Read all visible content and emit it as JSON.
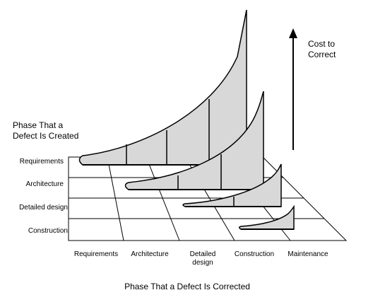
{
  "diagram": {
    "title_y_axis": [
      "Phase That a",
      "Defect Is Created"
    ],
    "title_x_axis": "Phase That a Defect Is Corrected",
    "cost_label": [
      "Cost to",
      "Correct"
    ],
    "created_phases": [
      "Requirements",
      "Architecture",
      "Detailed design",
      "Construction"
    ],
    "corrected_phases": [
      {
        "lines": [
          "Requirements"
        ]
      },
      {
        "lines": [
          "Architecture"
        ]
      },
      {
        "lines": [
          "Detailed",
          "design"
        ]
      },
      {
        "lines": [
          "Construction"
        ]
      },
      {
        "lines": [
          "Maintenance"
        ]
      }
    ],
    "colors": {
      "curve_fill": "#d8d8d8",
      "line": "#000000",
      "background": "#ffffff"
    }
  }
}
